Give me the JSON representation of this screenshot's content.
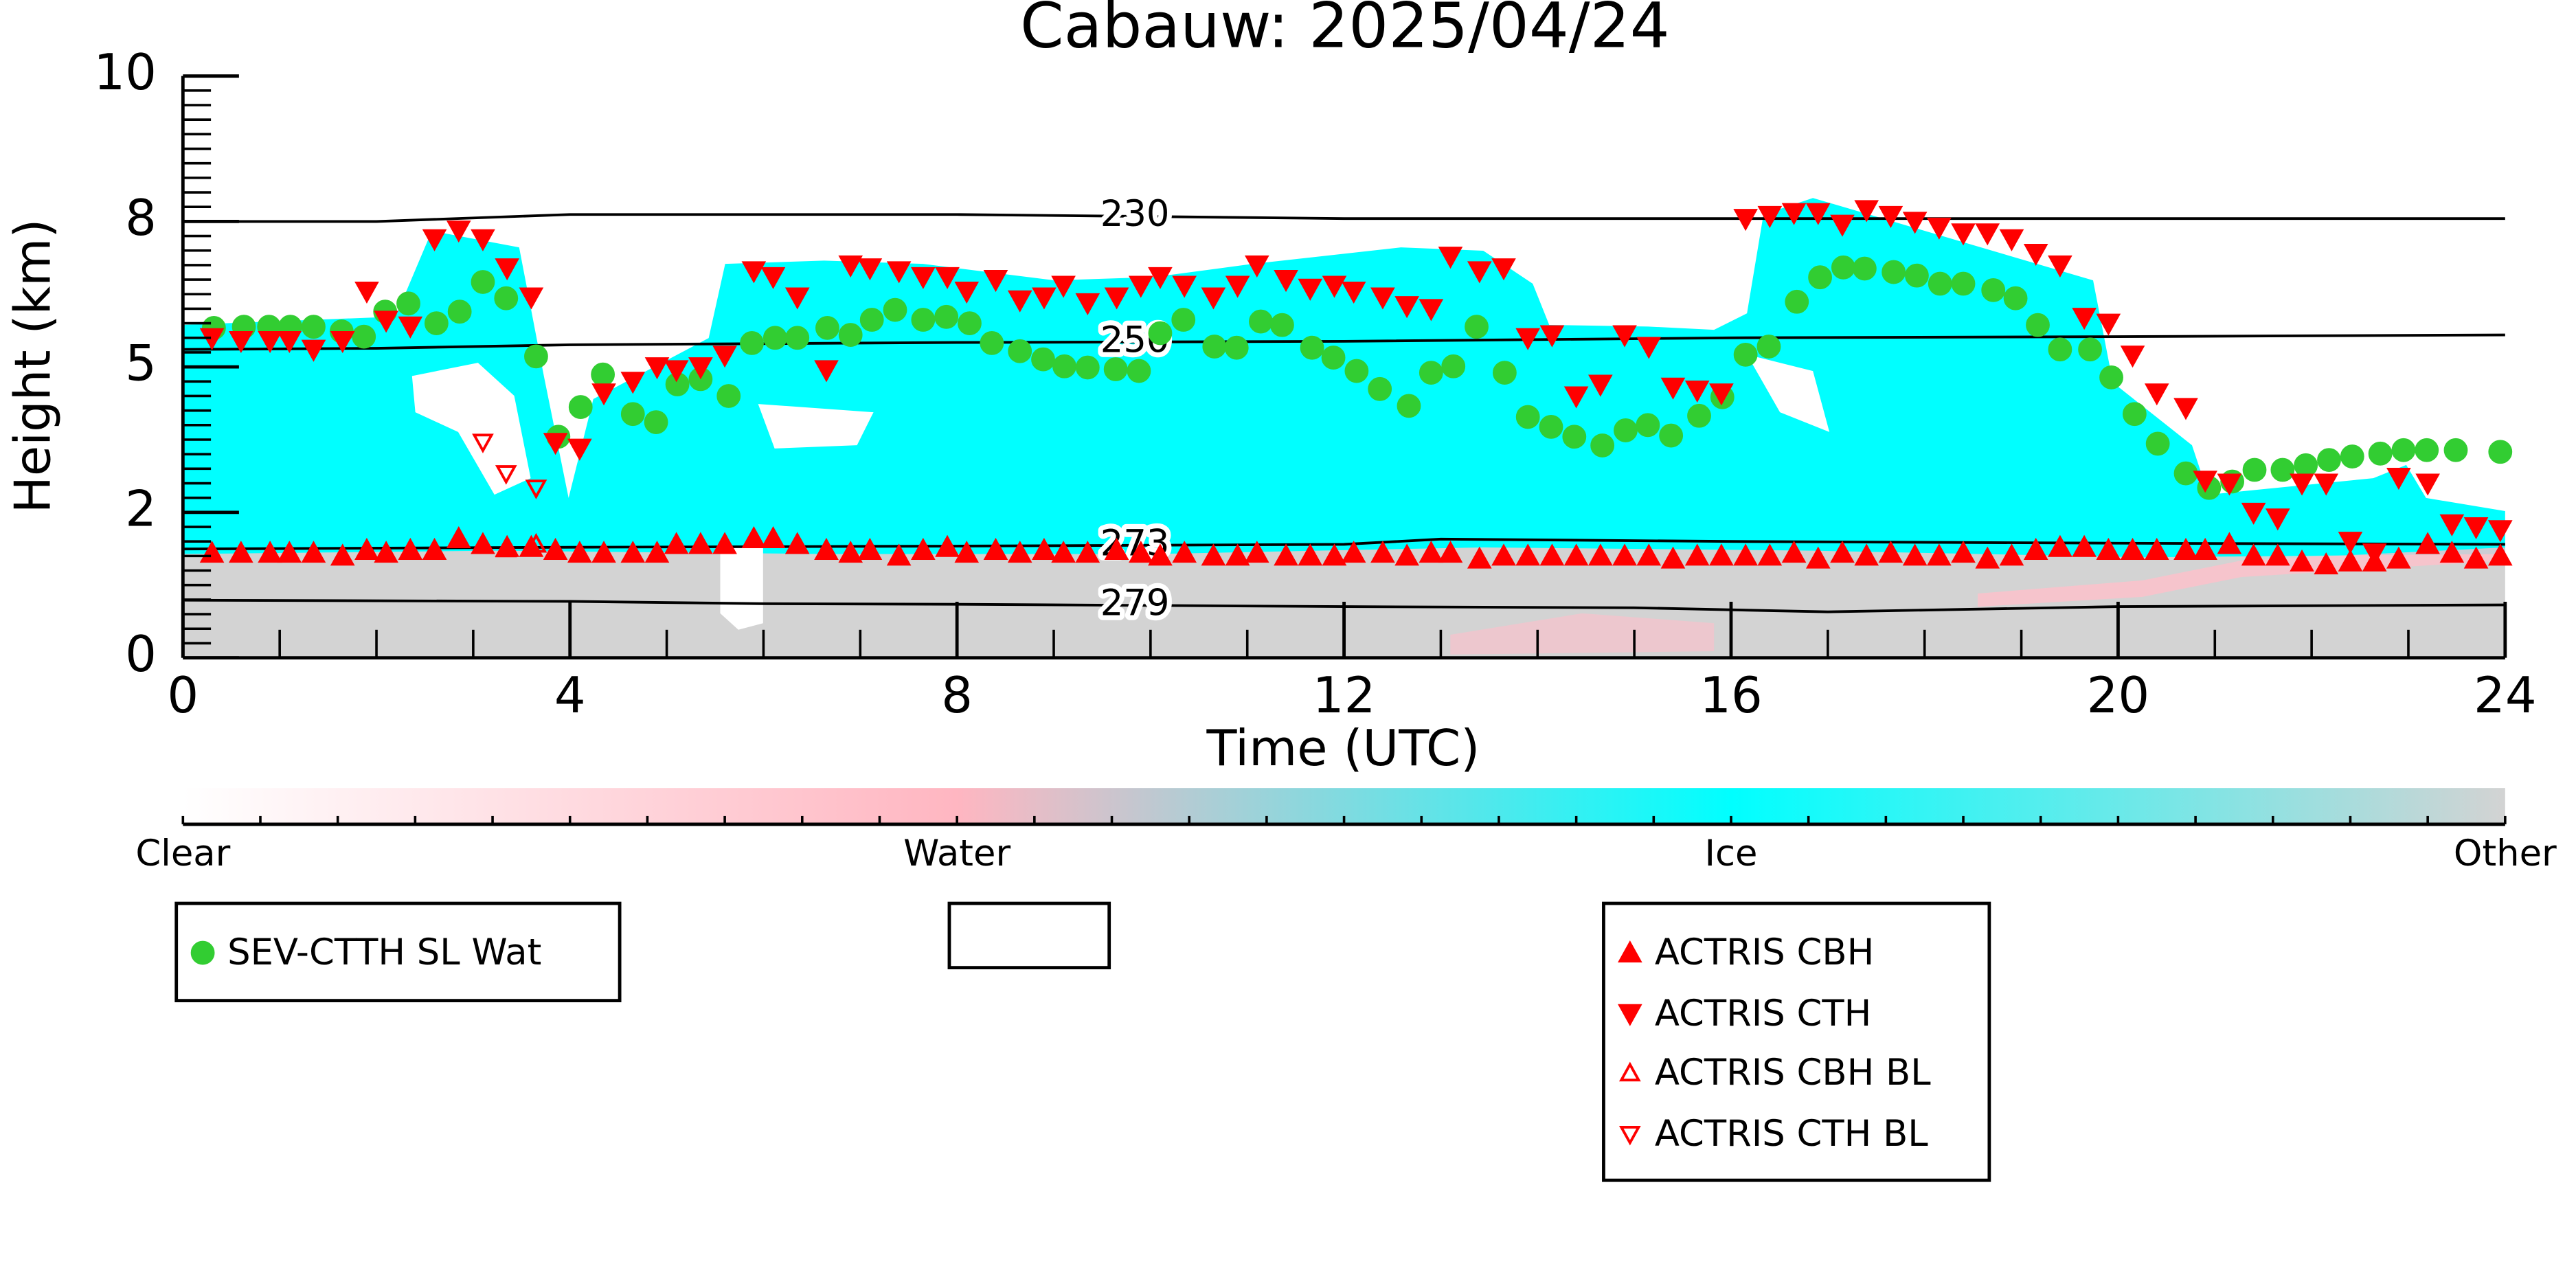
{
  "chart_data": {
    "type": "scatter",
    "title": "Cabauw: 2025/04/24",
    "xlabel": "Time (UTC)",
    "ylabel": "Height (km)",
    "xlim": [
      0,
      24
    ],
    "xticks": [
      0,
      4,
      8,
      12,
      16,
      20,
      24
    ],
    "ylim": [
      0,
      10
    ],
    "yticks": [
      0,
      {
        "value": 2.5,
        "label": "2"
      },
      5,
      {
        "value": 7.5,
        "label": "8"
      },
      10
    ],
    "series": [
      {
        "name": "SEV-CTTH SL Wat",
        "color": "#32cd32",
        "marker": "circle",
        "filled": true,
        "x": [
          0.32,
          0.63,
          0.89,
          1.11,
          1.35,
          1.64,
          1.87,
          2.09,
          2.33,
          2.62,
          2.86,
          3.1,
          3.34,
          3.65,
          3.88,
          4.11,
          4.34,
          4.65,
          4.89,
          5.11,
          5.35,
          5.64,
          5.88,
          6.12,
          6.35,
          6.66,
          6.9,
          7.12,
          7.36,
          7.65,
          7.89,
          8.13,
          8.36,
          8.65,
          8.89,
          9.11,
          9.35,
          9.64,
          9.88,
          10.1,
          10.34,
          10.66,
          10.89,
          11.14,
          11.36,
          11.67,
          11.89,
          12.13,
          12.37,
          12.67,
          12.9,
          13.13,
          13.37,
          13.66,
          13.9,
          14.14,
          14.38,
          14.67,
          14.91,
          15.14,
          15.38,
          15.67,
          15.91,
          16.15,
          16.39,
          16.68,
          16.92,
          17.16,
          17.38,
          17.68,
          17.92,
          18.16,
          18.4,
          18.71,
          18.94,
          19.17,
          19.4,
          19.71,
          19.93,
          20.17,
          20.41,
          20.7,
          20.94,
          21.18,
          21.41,
          21.7,
          21.94,
          22.18,
          22.42,
          22.71,
          22.95,
          23.19,
          23.49,
          23.95
        ],
        "values": [
          5.67,
          5.69,
          5.69,
          5.69,
          5.69,
          5.61,
          5.52,
          5.95,
          6.09,
          5.75,
          5.95,
          6.46,
          6.18,
          5.18,
          3.8,
          4.31,
          4.87,
          4.19,
          4.05,
          4.7,
          4.79,
          4.5,
          5.41,
          5.5,
          5.5,
          5.67,
          5.55,
          5.81,
          5.98,
          5.81,
          5.86,
          5.75,
          5.41,
          5.27,
          5.13,
          5.01,
          4.99,
          4.96,
          4.93,
          5.58,
          5.81,
          5.35,
          5.33,
          5.78,
          5.72,
          5.33,
          5.16,
          4.93,
          4.62,
          4.33,
          4.9,
          5.01,
          5.69,
          4.9,
          4.14,
          3.97,
          3.8,
          3.65,
          3.91,
          4.0,
          3.82,
          4.16,
          4.48,
          5.21,
          5.35,
          6.12,
          6.54,
          6.71,
          6.69,
          6.63,
          6.57,
          6.43,
          6.43,
          6.32,
          6.18,
          5.72,
          5.3,
          5.3,
          4.82,
          4.19,
          3.68,
          3.17,
          2.92,
          3.03,
          3.23,
          3.23,
          3.31,
          3.4,
          3.46,
          3.51,
          3.57,
          3.57,
          3.57,
          3.54
        ]
      },
      {
        "name": "ACTRIS CBH",
        "color": "#ff0000",
        "marker": "triangle-up",
        "filled": true,
        "x": [
          0.3,
          0.6,
          0.9,
          1.1,
          1.35,
          1.65,
          1.9,
          2.1,
          2.35,
          2.6,
          2.85,
          3.1,
          3.35,
          3.6,
          3.85,
          4.1,
          4.35,
          4.65,
          4.9,
          5.1,
          5.35,
          5.6,
          5.9,
          6.1,
          6.35,
          6.65,
          6.9,
          7.1,
          7.4,
          7.65,
          7.9,
          8.1,
          8.4,
          8.65,
          8.9,
          9.1,
          9.35,
          9.65,
          9.9,
          10.1,
          10.35,
          10.65,
          10.9,
          11.1,
          11.4,
          11.65,
          11.9,
          12.1,
          12.4,
          12.65,
          12.9,
          13.1,
          13.4,
          13.65,
          13.9,
          14.15,
          14.4,
          14.65,
          14.9,
          15.15,
          15.4,
          15.65,
          15.9,
          16.15,
          16.4,
          16.65,
          16.9,
          17.15,
          17.4,
          17.65,
          17.9,
          18.15,
          18.4,
          18.65,
          18.9,
          19.15,
          19.4,
          19.65,
          19.9,
          20.15,
          20.4,
          20.7,
          20.9,
          21.15,
          21.4,
          21.65,
          21.9,
          22.15,
          22.4,
          22.65,
          22.9,
          23.2,
          23.45,
          23.7,
          23.95
        ],
        "values": [
          1.8,
          1.8,
          1.8,
          1.8,
          1.8,
          1.75,
          1.85,
          1.8,
          1.85,
          1.85,
          2.05,
          1.95,
          1.9,
          1.9,
          1.85,
          1.8,
          1.8,
          1.8,
          1.8,
          1.95,
          1.95,
          1.95,
          2.05,
          2.05,
          1.95,
          1.85,
          1.8,
          1.85,
          1.75,
          1.85,
          1.9,
          1.8,
          1.85,
          1.8,
          1.85,
          1.8,
          1.8,
          1.85,
          1.8,
          1.75,
          1.8,
          1.75,
          1.75,
          1.8,
          1.75,
          1.75,
          1.75,
          1.8,
          1.8,
          1.75,
          1.8,
          1.8,
          1.7,
          1.75,
          1.75,
          1.75,
          1.75,
          1.75,
          1.75,
          1.75,
          1.7,
          1.75,
          1.75,
          1.75,
          1.75,
          1.8,
          1.7,
          1.8,
          1.75,
          1.8,
          1.75,
          1.75,
          1.8,
          1.7,
          1.75,
          1.85,
          1.9,
          1.9,
          1.85,
          1.85,
          1.85,
          1.85,
          1.85,
          1.95,
          1.75,
          1.75,
          1.65,
          1.6,
          1.65,
          1.65,
          1.7,
          1.95,
          1.8,
          1.7,
          1.75
        ]
      },
      {
        "name": "ACTRIS CTH",
        "color": "#ff0000",
        "marker": "triangle-down",
        "filled": true,
        "x": [
          0.3,
          0.6,
          0.9,
          1.1,
          1.35,
          1.65,
          1.9,
          2.1,
          2.35,
          2.6,
          2.85,
          3.1,
          3.35,
          3.6,
          3.85,
          4.1,
          4.35,
          4.65,
          4.9,
          5.1,
          5.35,
          5.6,
          5.9,
          6.1,
          6.35,
          6.65,
          6.9,
          7.1,
          7.4,
          7.65,
          7.9,
          8.1,
          8.4,
          8.65,
          8.9,
          9.1,
          9.35,
          9.65,
          9.9,
          10.1,
          10.35,
          10.65,
          10.9,
          11.1,
          11.4,
          11.65,
          11.9,
          12.1,
          12.4,
          12.65,
          12.9,
          13.1,
          13.4,
          13.65,
          13.9,
          14.15,
          14.4,
          14.65,
          14.9,
          15.15,
          15.4,
          15.65,
          15.9,
          16.15,
          16.4,
          16.65,
          16.9,
          17.15,
          17.4,
          17.65,
          17.9,
          18.15,
          18.4,
          18.65,
          18.9,
          19.15,
          19.4,
          19.65,
          19.9,
          20.15,
          20.4,
          20.7,
          20.9,
          21.15,
          21.4,
          21.65,
          21.9,
          22.15,
          22.4,
          22.65,
          22.9,
          23.2,
          23.45,
          23.7,
          23.95
        ],
        "values": [
          5.5,
          5.45,
          5.45,
          5.45,
          5.3,
          5.45,
          6.3,
          5.8,
          5.7,
          7.2,
          7.35,
          7.2,
          6.7,
          6.2,
          3.7,
          3.6,
          4.55,
          4.75,
          5.0,
          4.95,
          5.0,
          5.2,
          6.65,
          6.55,
          6.2,
          4.95,
          6.75,
          6.7,
          6.65,
          6.55,
          6.55,
          6.3,
          6.5,
          6.15,
          6.2,
          6.4,
          6.1,
          6.2,
          6.4,
          6.55,
          6.4,
          6.2,
          6.4,
          6.75,
          6.5,
          6.35,
          6.4,
          6.3,
          6.2,
          6.05,
          6.0,
          6.9,
          6.65,
          6.7,
          5.5,
          5.55,
          4.5,
          4.7,
          5.55,
          5.35,
          4.65,
          4.6,
          4.55,
          7.55,
          7.6,
          7.65,
          7.65,
          7.45,
          7.7,
          7.6,
          7.5,
          7.4,
          7.3,
          7.3,
          7.2,
          6.95,
          6.75,
          5.85,
          5.75,
          5.2,
          4.55,
          4.3,
          3.05,
          3.0,
          2.5,
          2.4,
          3.0,
          3.0,
          2.0,
          1.8,
          3.1,
          3.0,
          2.3,
          2.25,
          2.2
        ]
      },
      {
        "name": "ACTRIS CBH BL",
        "color": "#ff0000",
        "marker": "triangle-up",
        "filled": false,
        "x": [
          3.34,
          3.65
        ],
        "values": [
          1.87,
          1.95
        ]
      },
      {
        "name": "ACTRIS CTH BL",
        "color": "#ff0000",
        "marker": "triangle-down",
        "filled": false,
        "x": [
          3.1,
          3.34,
          3.65
        ],
        "values": [
          3.71,
          3.17,
          2.92
        ]
      }
    ],
    "contours": [
      {
        "label": "230",
        "x": [
          0,
          2,
          4,
          8,
          12,
          16,
          20,
          24
        ],
        "values": [
          7.5,
          7.5,
          7.62,
          7.62,
          7.55,
          7.55,
          7.55,
          7.55
        ]
      },
      {
        "label": "250",
        "x": [
          0,
          2,
          4,
          8,
          12,
          16,
          20,
          24
        ],
        "values": [
          5.3,
          5.32,
          5.38,
          5.42,
          5.44,
          5.5,
          5.52,
          5.55
        ]
      },
      {
        "label": "273",
        "x": [
          0,
          4,
          8,
          12,
          13,
          16,
          20,
          24
        ],
        "values": [
          1.87,
          1.9,
          1.92,
          1.95,
          2.04,
          2.0,
          1.97,
          1.95
        ]
      },
      {
        "label": "279",
        "x": [
          0,
          4,
          6,
          8,
          12,
          15,
          17,
          20,
          24
        ],
        "values": [
          0.99,
          0.97,
          0.93,
          0.92,
          0.88,
          0.86,
          0.79,
          0.88,
          0.91
        ]
      }
    ],
    "colorbar": {
      "labels": [
        "Clear",
        "Water",
        "Ice",
        "Other"
      ],
      "colors": [
        "#ffffff",
        "#ffb6c1",
        "#00ffff",
        "#d3d3d3"
      ]
    }
  }
}
